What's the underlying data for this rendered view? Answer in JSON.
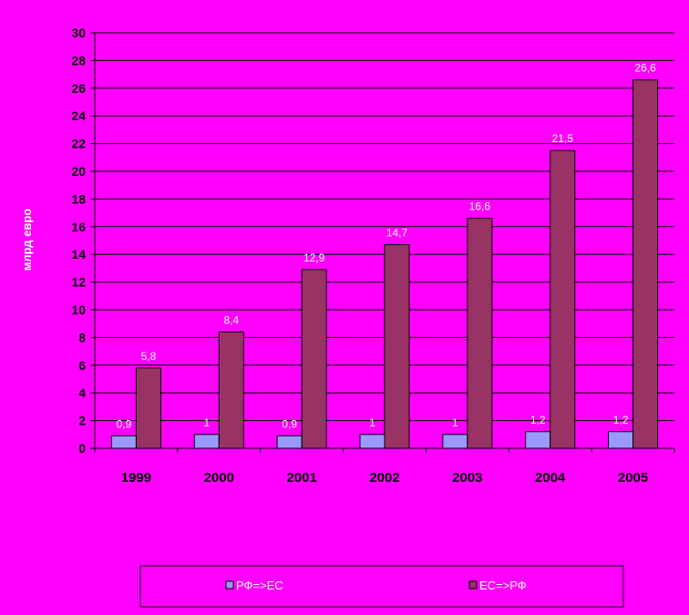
{
  "chart_data": {
    "type": "bar",
    "categories": [
      "1999",
      "2000",
      "2001",
      "2002",
      "2003",
      "2004",
      "2005"
    ],
    "series": [
      {
        "name": "РФ=>ЕС",
        "values": [
          0.9,
          1,
          0.9,
          1,
          1,
          1.2,
          1.2
        ],
        "labels": [
          "0,9",
          "1",
          "0,9",
          "1",
          "1",
          "1,2",
          "1,2"
        ],
        "color": "#9999FF"
      },
      {
        "name": "ЕС=>РФ",
        "values": [
          5.8,
          8.4,
          12.9,
          14.7,
          16.6,
          21.5,
          26.6
        ],
        "labels": [
          "5,8",
          "8,4",
          "12,9",
          "14,7",
          "16,6",
          "21,5",
          "26,6"
        ],
        "color": "#993366"
      }
    ],
    "ylabel": "млрд евро",
    "ylim": [
      0,
      30
    ],
    "yticks": [
      0,
      2,
      4,
      6,
      8,
      10,
      12,
      14,
      16,
      18,
      20,
      22,
      24,
      26,
      28,
      30
    ],
    "grid": true,
    "legend_position": "bottom",
    "colors": {
      "background": "#FF00FF",
      "grid": "#000000",
      "axis_text": "#000000",
      "label_text": "#FFFFFF"
    }
  }
}
